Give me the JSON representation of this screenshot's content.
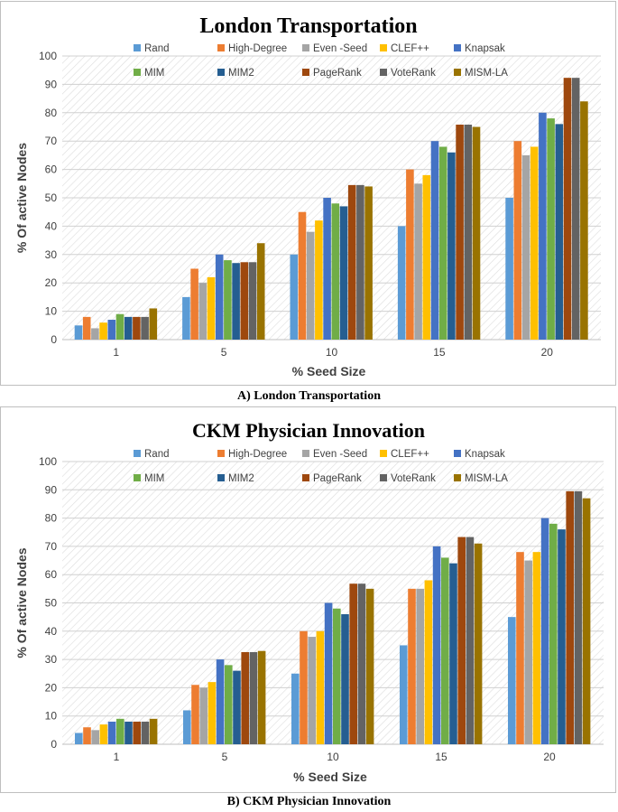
{
  "series_colors": [
    "#5b9bd5",
    "#ed7d31",
    "#a5a5a5",
    "#ffc000",
    "#4472c4",
    "#70ad47",
    "#255e91",
    "#9e480e",
    "#636363",
    "#997300"
  ],
  "chart_data": [
    {
      "type": "bar",
      "title": "London Transportation",
      "caption": "A)  London Transportation",
      "xlabel": "% Seed Size",
      "ylabel": "% Of active Nodes",
      "ylim": [
        0,
        100
      ],
      "yticks": [
        "0",
        "10",
        "20",
        "30",
        "40",
        "50",
        "60",
        "70",
        "80",
        "90",
        "100"
      ],
      "categories": [
        "1",
        "5",
        "10",
        "15",
        "20"
      ],
      "legend_position": "top",
      "series": [
        {
          "name": "Rand",
          "values": [
            5,
            15,
            30,
            40,
            50
          ]
        },
        {
          "name": "High-Degree",
          "values": [
            8,
            25,
            45,
            60,
            70
          ]
        },
        {
          "name": "Even -Seed",
          "values": [
            4,
            20,
            38,
            55,
            65
          ]
        },
        {
          "name": "CLEF++",
          "values": [
            6,
            22,
            42,
            58,
            68
          ]
        },
        {
          "name": "Knapsak",
          "values": [
            7,
            30,
            50,
            70,
            80
          ]
        },
        {
          "name": "MIM",
          "values": [
            9,
            28,
            48,
            68,
            78
          ]
        },
        {
          "name": "MIM2",
          "values": [
            8,
            27,
            47,
            66,
            76
          ]
        },
        {
          "name": "PageRank",
          "values": [
            8,
            27.3,
            54.5,
            75.8,
            92.3
          ]
        },
        {
          "name": "VoteRank",
          "values": [
            8,
            27.3,
            54.5,
            75.8,
            92.3
          ]
        },
        {
          "name": "MISM-LA",
          "values": [
            11,
            34,
            54,
            75,
            84
          ]
        }
      ]
    },
    {
      "type": "bar",
      "title": "CKM Physician Innovation",
      "caption": "B) CKM Physician Innovation",
      "xlabel": "% Seed Size",
      "ylabel": "% Of active Nodes",
      "ylim": [
        0,
        100
      ],
      "yticks": [
        "0",
        "10",
        "20",
        "30",
        "40",
        "50",
        "60",
        "70",
        "80",
        "90",
        "100"
      ],
      "categories": [
        "1",
        "5",
        "10",
        "15",
        "20"
      ],
      "legend_position": "top",
      "series": [
        {
          "name": "Rand",
          "values": [
            4,
            12,
            25,
            35,
            45
          ]
        },
        {
          "name": "High-Degree",
          "values": [
            6,
            21,
            40,
            55,
            68
          ]
        },
        {
          "name": "Even -Seed",
          "values": [
            5,
            20,
            38,
            55,
            65
          ]
        },
        {
          "name": "CLEF++",
          "values": [
            7,
            22,
            40,
            58,
            68
          ]
        },
        {
          "name": "Knapsak",
          "values": [
            8,
            30,
            50,
            70,
            80
          ]
        },
        {
          "name": "MIM",
          "values": [
            9,
            28,
            48,
            66,
            78
          ]
        },
        {
          "name": "MIM2",
          "values": [
            8,
            26,
            46,
            64,
            76
          ]
        },
        {
          "name": "PageRank",
          "values": [
            8,
            32.6,
            56.8,
            73.3,
            89.5
          ]
        },
        {
          "name": "VoteRank",
          "values": [
            8,
            32.6,
            56.8,
            73.3,
            89.5
          ]
        },
        {
          "name": "MISM-LA",
          "values": [
            9,
            33,
            55,
            71,
            87
          ]
        }
      ]
    }
  ]
}
